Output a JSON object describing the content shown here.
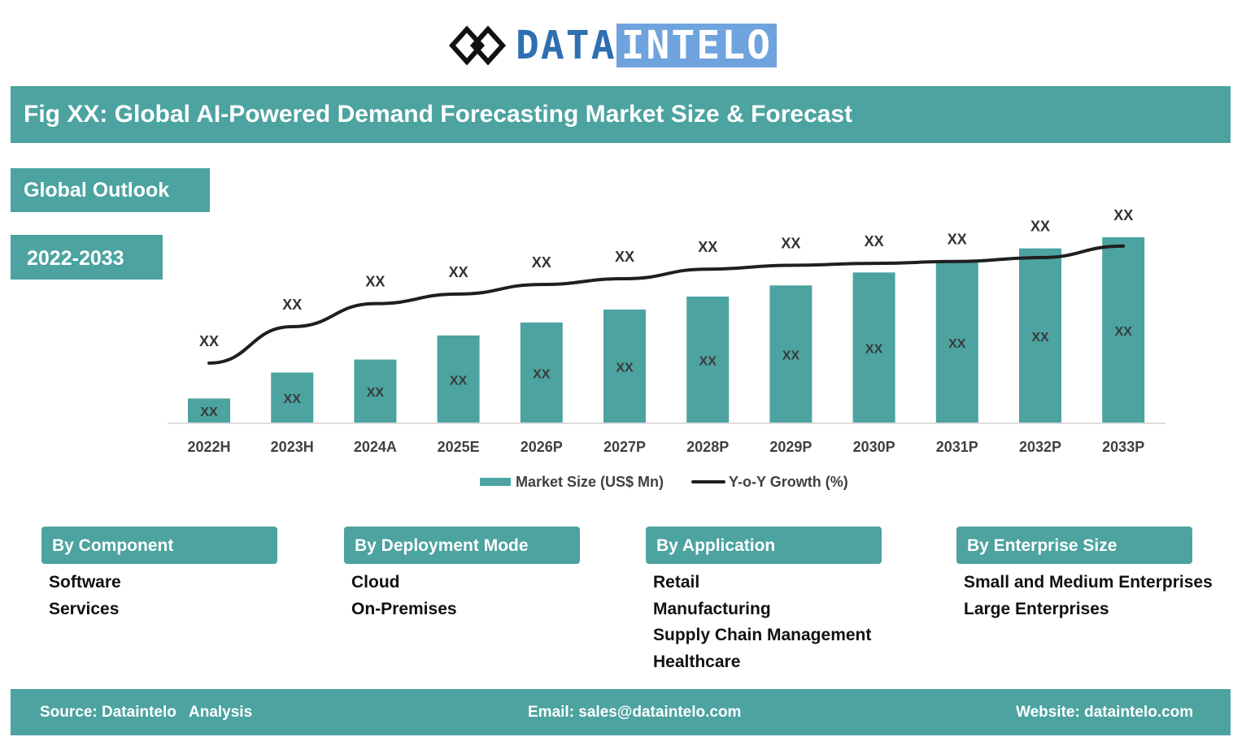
{
  "brand": {
    "name_part1": "DATA",
    "name_part2": "INTELO",
    "color_primary": "#2f6fb3",
    "color_secondary": "#6fa3dd"
  },
  "header": {
    "title": "Fig XX: Global AI-Powered Demand Forecasting Market Size & Forecast"
  },
  "tags": {
    "outlook": "Global Outlook",
    "period": "2022-2033"
  },
  "colors": {
    "accent": "#4ca3a0",
    "line": "#1f1f1f"
  },
  "chart_data": {
    "type": "bar",
    "categories": [
      "2022H",
      "2023H",
      "2024A",
      "2025E",
      "2026P",
      "2027P",
      "2028P",
      "2029P",
      "2030P",
      "2031P",
      "2032P",
      "2033P"
    ],
    "series": [
      {
        "name": "Market Size (US$ Mn)",
        "type": "bar",
        "values": [
          13,
          27,
          34,
          47,
          54,
          61,
          68,
          74,
          81,
          87,
          94,
          100
        ],
        "labels": [
          "XX",
          "XX",
          "XX",
          "XX",
          "XX",
          "XX",
          "XX",
          "XX",
          "XX",
          "XX",
          "XX",
          "XX"
        ]
      },
      {
        "name": "Y-o-Y Growth (%)",
        "type": "line",
        "values": [
          31,
          50,
          62,
          67,
          72,
          75,
          80,
          82,
          83,
          84,
          86,
          92
        ],
        "labels": [
          "XX",
          "XX",
          "XX",
          "XX",
          "XX",
          "XX",
          "XX",
          "XX",
          "XX",
          "XX",
          "XX",
          "XX"
        ]
      }
    ],
    "ylim": [
      0,
      100
    ],
    "grid": false,
    "legend": "bottom-center",
    "xlabel": "",
    "ylabel": ""
  },
  "segments": [
    {
      "title": "By Component",
      "items": [
        "Software",
        "Services"
      ]
    },
    {
      "title": "By Deployment Mode",
      "items": [
        "Cloud",
        "On-Premises"
      ]
    },
    {
      "title": "By Application",
      "items": [
        "Retail",
        "Manufacturing",
        "Supply Chain Management",
        "Healthcare"
      ]
    },
    {
      "title": "By Enterprise Size",
      "items": [
        "Small and Medium Enterprises",
        "Large Enterprises"
      ]
    }
  ],
  "footer": {
    "source": "Source: Dataintelo   Analysis",
    "email": "Email: sales@dataintelo.com",
    "website": "Website: dataintelo.com"
  }
}
